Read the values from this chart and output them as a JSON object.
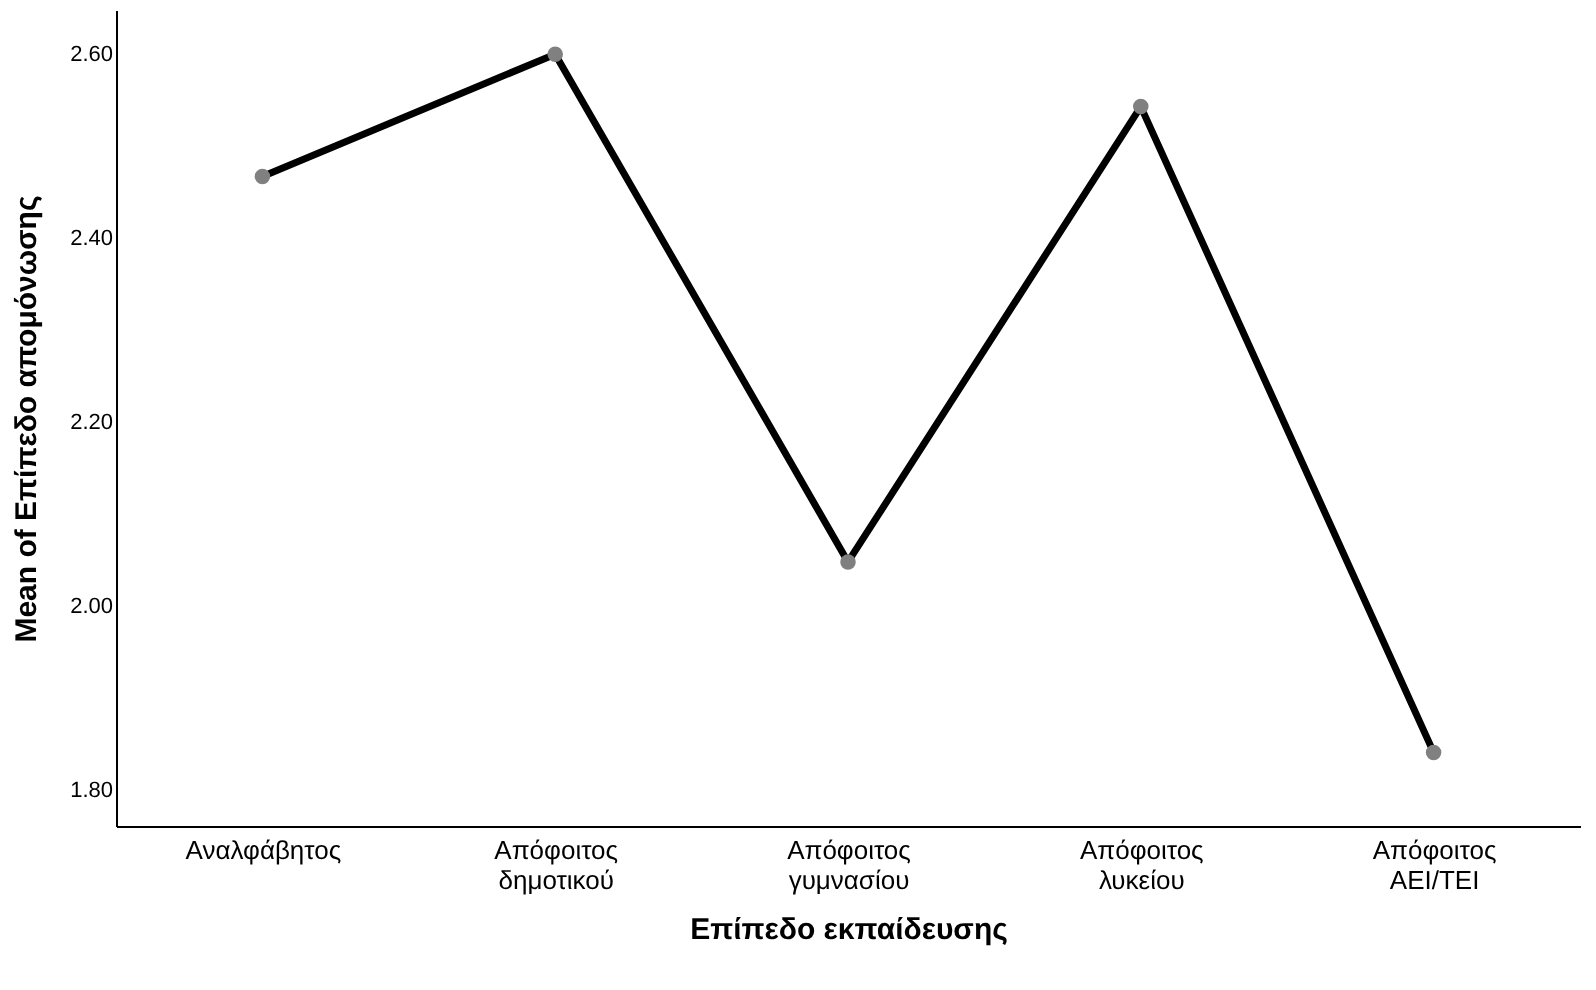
{
  "chart_data": {
    "type": "line",
    "xlabel": "Επίπεδο εκπαίδευσης",
    "ylabel": "Mean of Επίπεδο απομόνωσης",
    "categories": [
      "Αναλφάβητος",
      "Απόφοιτος\nδημοτικού",
      "Απόφοιτος\nγυμνασίου",
      "Απόφοιτος\nλυκείου",
      "Απόφοιτος\nΑΕΙ/ΤΕΙ"
    ],
    "series": [
      {
        "color": "#000000",
        "values": [
          2.467,
          2.6,
          2.048,
          2.543,
          1.841
        ]
      }
    ],
    "ylim": [
      1.761,
      2.648
    ],
    "yticks": [
      {
        "value": 1.8,
        "label": "1.80"
      },
      {
        "value": 2.0,
        "label": "2.00"
      },
      {
        "value": 2.2,
        "label": "2.20"
      },
      {
        "value": 2.4,
        "label": "2.40"
      },
      {
        "value": 2.6,
        "label": "2.60"
      }
    ],
    "marker": "circle",
    "grid": false,
    "legend": false
  }
}
